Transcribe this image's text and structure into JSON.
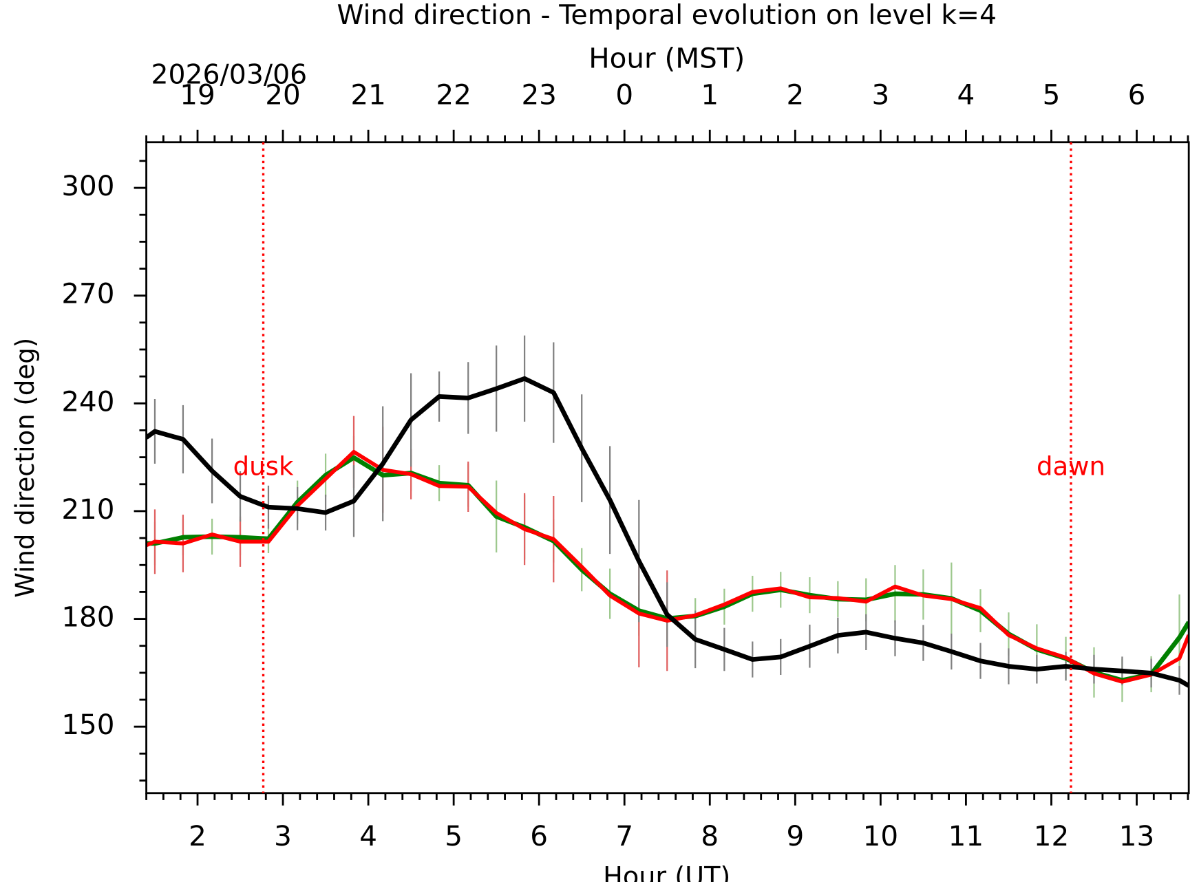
{
  "chart_data": {
    "type": "line",
    "title": "Wind direction - Temporal evolution on level k=4",
    "xlabel": "Hour (UT)",
    "x2label": "Hour (MST)",
    "ylabel": "Wind direction (deg)",
    "date_label": "2026/03/06",
    "xlim": [
      1.4,
      13.61
    ],
    "ylim": [
      131.5,
      312.7
    ],
    "xticks": [
      2,
      3,
      4,
      5,
      6,
      7,
      8,
      9,
      10,
      11,
      12,
      13
    ],
    "x2ticks": [
      {
        "value": 2,
        "label": "19"
      },
      {
        "value": 3,
        "label": "20"
      },
      {
        "value": 4,
        "label": "21"
      },
      {
        "value": 5,
        "label": "22"
      },
      {
        "value": 6,
        "label": "23"
      },
      {
        "value": 7,
        "label": "0"
      },
      {
        "value": 8,
        "label": "1"
      },
      {
        "value": 9,
        "label": "2"
      },
      {
        "value": 10,
        "label": "3"
      },
      {
        "value": 11,
        "label": "4"
      },
      {
        "value": 12,
        "label": "5"
      },
      {
        "value": 13,
        "label": "6"
      }
    ],
    "xminorticks": [
      1.4,
      1.6,
      1.8,
      2.2,
      2.4,
      2.6,
      2.8,
      3.2,
      3.4,
      3.6,
      3.8,
      4.2,
      4.4,
      4.6,
      4.8,
      5.2,
      5.4,
      5.6,
      5.8,
      6.2,
      6.4,
      6.6,
      6.8,
      7.2,
      7.4,
      7.6,
      7.8,
      8.2,
      8.4,
      8.6,
      8.8,
      9.2,
      9.4,
      9.6,
      9.8,
      10.2,
      10.4,
      10.6,
      10.8,
      11.2,
      11.4,
      11.6,
      11.8,
      12.2,
      12.4,
      12.6,
      12.8,
      13.2,
      13.4,
      13.6
    ],
    "yticks": [
      150,
      180,
      210,
      240,
      270,
      300
    ],
    "yminorticks": [
      135,
      142.5,
      157.5,
      165,
      172.5,
      187.5,
      195,
      202.5,
      217.5,
      225,
      232.5,
      247.5,
      255,
      262.5,
      277.5,
      285,
      292.5,
      307.5
    ],
    "vlines": [
      {
        "x": 2.77,
        "label": "dusk"
      },
      {
        "x": 12.23,
        "label": "dawn"
      }
    ],
    "vline_color": "#ff0000",
    "x": [
      1.4,
      1.5,
      1.83,
      2.17,
      2.5,
      2.83,
      3.17,
      3.5,
      3.83,
      4.17,
      4.5,
      4.83,
      5.17,
      5.5,
      5.83,
      6.17,
      6.5,
      6.83,
      7.17,
      7.5,
      7.83,
      8.17,
      8.5,
      8.83,
      9.17,
      9.5,
      9.83,
      10.17,
      10.5,
      10.83,
      11.17,
      11.5,
      11.83,
      12.17,
      12.5,
      12.83,
      13.17,
      13.5,
      13.61
    ],
    "series": [
      {
        "color": "#008000",
        "error_color": "#9dc88d",
        "width": 6,
        "values": [
          201,
          201,
          202.7,
          202.9,
          202.7,
          202.3,
          212.5,
          220,
          224.9,
          220,
          220.6,
          217.8,
          217.2,
          208.5,
          205.5,
          201.7,
          193.7,
          187,
          182.3,
          180.1,
          180.8,
          183.4,
          187,
          188.1,
          186.6,
          185.5,
          185.3,
          187,
          186.8,
          185.7,
          182.3,
          175.8,
          171.5,
          169,
          165.1,
          162.9,
          164.6,
          174.8,
          179.1
        ],
        "errors": [
          null,
          6,
          5,
          5,
          5,
          4,
          6,
          6,
          6,
          5,
          5,
          5,
          6,
          10,
          9,
          6,
          6,
          7,
          7,
          6,
          5,
          5,
          5,
          5,
          5,
          5,
          6,
          8,
          7,
          10,
          6,
          6,
          7,
          6,
          7,
          6,
          5,
          12,
          null
        ]
      },
      {
        "color": "#ff0000",
        "error_color": "#e06060",
        "width": 5,
        "values": [
          200.5,
          201.5,
          201,
          203.5,
          201.5,
          201.5,
          211.5,
          219,
          226.5,
          221.5,
          220.3,
          217,
          216.8,
          209.5,
          205,
          202.2,
          194.5,
          186.5,
          181.5,
          179.5,
          181,
          184,
          187.5,
          188.5,
          186,
          185.8,
          184.8,
          189,
          186.5,
          185.5,
          183,
          175.5,
          171.8,
          169.2,
          164.8,
          162.5,
          164.5,
          169,
          175.5
        ],
        "errors": [
          null,
          9,
          8,
          null,
          7,
          null,
          null,
          null,
          10,
          12,
          7,
          null,
          7,
          null,
          10,
          12,
          null,
          null,
          15,
          14,
          null,
          null,
          null,
          null,
          null,
          null,
          null,
          null,
          null,
          null,
          null,
          null,
          null,
          null,
          null,
          null,
          null,
          null,
          null
        ]
      },
      {
        "color": "#000000",
        "error_color": "#808080",
        "width": 6,
        "values": [
          230.5,
          232.2,
          230,
          221.2,
          214.1,
          211.1,
          210.7,
          209.6,
          212.8,
          223.2,
          235.4,
          241.9,
          241.5,
          244.1,
          246.9,
          243,
          227.5,
          213.1,
          196.1,
          181.2,
          174.3,
          171.5,
          168.7,
          169.4,
          172.4,
          175.4,
          176.3,
          174.6,
          173.3,
          170.9,
          168.3,
          166.8,
          166,
          166.8,
          166,
          165.5,
          164.9,
          162.9,
          161.4
        ],
        "errors": [
          null,
          9,
          9.5,
          9,
          7,
          6,
          6,
          5,
          10,
          16,
          13,
          7,
          10,
          12,
          12,
          14,
          15,
          15,
          17,
          9,
          8,
          6,
          5,
          5,
          6,
          5,
          5,
          5,
          5,
          5,
          5,
          5,
          4,
          4,
          4,
          4,
          4,
          4,
          null
        ]
      }
    ]
  }
}
